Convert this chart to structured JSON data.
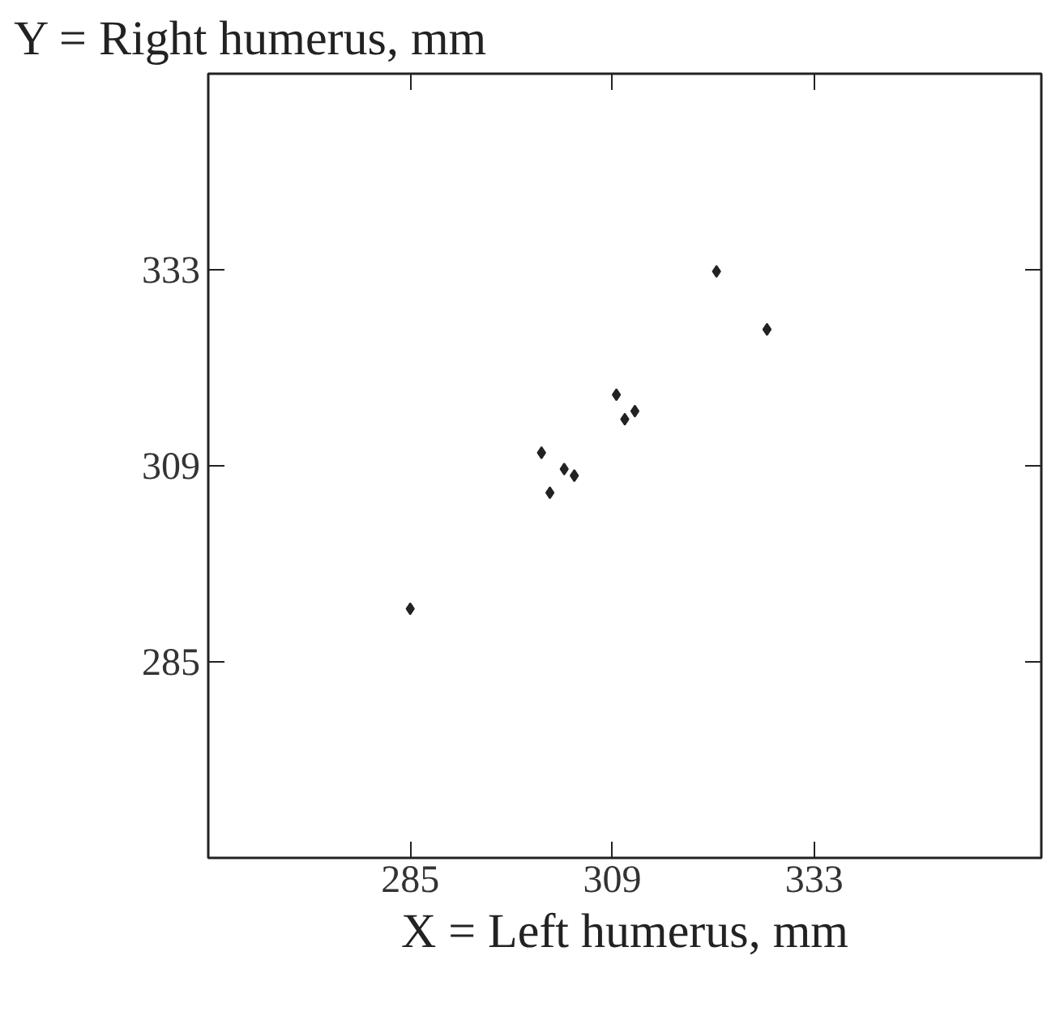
{
  "chart_data": {
    "type": "scatter",
    "xlabel": "X = Left humerus, mm",
    "ylabel": "Y = Right humerus, mm",
    "x": [
      285,
      300.6,
      301.6,
      303.3,
      304.5,
      309.5,
      310.5,
      311.7,
      321.4,
      327.4
    ],
    "values": [
      291.5,
      310.6,
      305.7,
      308.6,
      307.8,
      317.7,
      314.7,
      315.7,
      332.8,
      325.7
    ],
    "color": "#222222",
    "marker": "diamond",
    "grid": false,
    "xlim": [
      261,
      360
    ],
    "ylim": [
      261,
      357
    ],
    "xticks": [
      285,
      309,
      333
    ],
    "yticks": [
      285,
      309,
      333
    ]
  }
}
